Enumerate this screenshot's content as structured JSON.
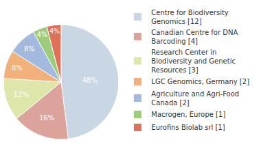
{
  "chart_data": {
    "type": "pie",
    "categories": [
      "Centre for Biodiversity Genomics [12]",
      "Canadian Centre for DNA Barcoding [4]",
      "Research Center in Biodiversity and Genetic Resources [3]",
      "LGC Genomics, Germany [2]",
      "Agriculture and Agri-Food Canada [2]",
      "Macrogen, Europe [1]",
      "Eurofins Biolab srl [1]"
    ],
    "values": [
      48,
      16,
      12,
      8,
      8,
      4,
      4
    ],
    "value_labels": [
      "48%",
      "16%",
      "12%",
      "8%",
      "8%",
      "4%",
      "4%"
    ],
    "colors": [
      "#c9d6e4",
      "#dca39c",
      "#dfe6a9",
      "#f2b17b",
      "#a4b9de",
      "#9fcc7c",
      "#e07159"
    ],
    "data_labels": true,
    "legend": "right"
  }
}
